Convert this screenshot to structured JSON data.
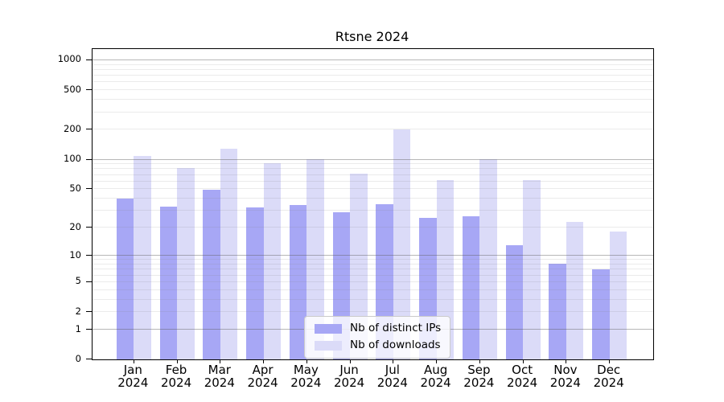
{
  "title": "Rtsne 2024",
  "chart_data": {
    "type": "bar",
    "title": "Rtsne 2024",
    "xlabel": "",
    "ylabel": "",
    "y_scale": "log10(1+y)",
    "ylim": [
      0,
      1300
    ],
    "grid": "horizontal, log decades with minor lines",
    "legend_position": "inside lower-center",
    "y_tick_labels": [
      "0",
      "1",
      "2",
      "5",
      "10",
      "20",
      "50",
      "100",
      "200",
      "500",
      "1000"
    ],
    "y_tick_values": [
      0,
      1,
      2,
      5,
      10,
      20,
      50,
      100,
      200,
      500,
      1000
    ],
    "categories": [
      "Jan 2024",
      "Feb 2024",
      "Mar 2024",
      "Apr 2024",
      "May 2024",
      "Jun 2024",
      "Jul 2024",
      "Aug 2024",
      "Sep 2024",
      "Oct 2024",
      "Nov 2024",
      "Dec 2024"
    ],
    "series": [
      {
        "name": "Nb of distinct IPs",
        "color": "#a7a7f5",
        "values": [
          40,
          33,
          49,
          32,
          34,
          29,
          35,
          25,
          26,
          13,
          8,
          7
        ]
      },
      {
        "name": "Nb of downloads",
        "color": "#dbdbf8",
        "values": [
          108,
          81,
          127,
          91,
          101,
          72,
          200,
          61,
          101,
          62,
          23,
          18
        ]
      }
    ]
  }
}
